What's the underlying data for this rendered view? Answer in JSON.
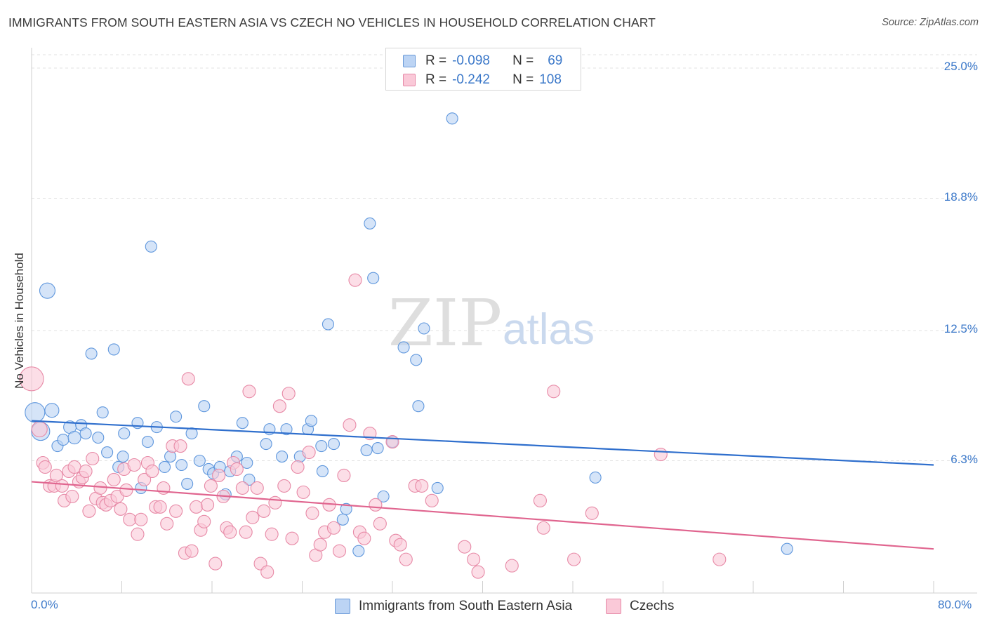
{
  "title": "IMMIGRANTS FROM SOUTH EASTERN ASIA VS CZECH NO VEHICLES IN HOUSEHOLD CORRELATION CHART",
  "source": "Source: ZipAtlas.com",
  "watermark": {
    "zip": "ZIP",
    "atlas": "atlas"
  },
  "legend": {
    "rows": [
      {
        "r_label": "R =",
        "r_value": "-0.098",
        "n_label": "N =",
        "n_value": "69",
        "color": "#bcd4f4",
        "border": "#6a9ad8"
      },
      {
        "r_label": "R =",
        "r_value": "-0.242",
        "n_label": "N =",
        "n_value": "108",
        "color": "#fac9d8",
        "border": "#e68aa8"
      }
    ]
  },
  "chart_data": {
    "type": "scatter",
    "title": "IMMIGRANTS FROM SOUTH EASTERN ASIA VS CZECH NO VEHICLES IN HOUSEHOLD CORRELATION CHART",
    "xlabel": "",
    "ylabel": "No Vehicles in Household",
    "xlim": [
      0,
      80
    ],
    "ylim": [
      0,
      25
    ],
    "x_tick_labels": [
      "0.0%",
      "80.0%"
    ],
    "y_ticks": [
      {
        "value": 25.0,
        "label": "25.0%"
      },
      {
        "value": 18.8,
        "label": "18.8%"
      },
      {
        "value": 12.5,
        "label": "12.5%"
      },
      {
        "value": 6.3,
        "label": "6.3%"
      }
    ],
    "grid": true,
    "series": [
      {
        "name": "Immigrants from South Eastern Asia",
        "color": "#5f97dd",
        "fill": "#bcd4f4",
        "trend": {
          "x": [
            0,
            80
          ],
          "y": [
            8.2,
            6.1
          ]
        },
        "points": [
          [
            0.3,
            8.6,
            14
          ],
          [
            0.8,
            7.7,
            13
          ],
          [
            1.4,
            14.4,
            11
          ],
          [
            1.8,
            8.7,
            10
          ],
          [
            2.3,
            7.0,
            8
          ],
          [
            2.8,
            7.3,
            8
          ],
          [
            3.4,
            7.9,
            9
          ],
          [
            3.8,
            7.4,
            9
          ],
          [
            4.4,
            8.0,
            8
          ],
          [
            4.8,
            7.6,
            8
          ],
          [
            5.3,
            11.4,
            8
          ],
          [
            5.9,
            7.4,
            8
          ],
          [
            6.3,
            8.6,
            8
          ],
          [
            6.7,
            6.7,
            8
          ],
          [
            7.3,
            11.6,
            8
          ],
          [
            7.7,
            6.0,
            8
          ],
          [
            8.1,
            6.5,
            8
          ],
          [
            8.2,
            7.6,
            8
          ],
          [
            9.4,
            8.1,
            8
          ],
          [
            9.7,
            5.0,
            8
          ],
          [
            10.3,
            7.2,
            8
          ],
          [
            10.6,
            16.5,
            8
          ],
          [
            11.1,
            7.9,
            8
          ],
          [
            11.8,
            6.0,
            8
          ],
          [
            12.3,
            6.5,
            8
          ],
          [
            12.8,
            8.4,
            8
          ],
          [
            13.3,
            6.1,
            8
          ],
          [
            13.8,
            5.2,
            8
          ],
          [
            14.2,
            7.6,
            8
          ],
          [
            14.9,
            6.3,
            8
          ],
          [
            15.3,
            8.9,
            8
          ],
          [
            15.7,
            5.9,
            8
          ],
          [
            16.1,
            5.7,
            8
          ],
          [
            16.7,
            6.0,
            8
          ],
          [
            17.2,
            4.7,
            8
          ],
          [
            17.6,
            5.8,
            8
          ],
          [
            18.2,
            6.5,
            8
          ],
          [
            18.7,
            8.1,
            8
          ],
          [
            19.1,
            6.2,
            8
          ],
          [
            19.3,
            5.4,
            8
          ],
          [
            20.8,
            7.1,
            8
          ],
          [
            21.1,
            7.8,
            8
          ],
          [
            22.2,
            6.5,
            8
          ],
          [
            22.6,
            7.8,
            8
          ],
          [
            23.8,
            6.5,
            8
          ],
          [
            24.5,
            7.8,
            8
          ],
          [
            24.8,
            8.2,
            8
          ],
          [
            25.7,
            7.0,
            8
          ],
          [
            25.8,
            5.8,
            8
          ],
          [
            26.3,
            12.8,
            8
          ],
          [
            26.8,
            7.1,
            8
          ],
          [
            27.6,
            3.5,
            8
          ],
          [
            27.9,
            4.0,
            8
          ],
          [
            29.0,
            2.0,
            8
          ],
          [
            29.7,
            6.8,
            8
          ],
          [
            30.0,
            17.6,
            8
          ],
          [
            30.3,
            15.0,
            8
          ],
          [
            30.7,
            6.9,
            8
          ],
          [
            31.2,
            4.6,
            8
          ],
          [
            32.0,
            7.2,
            8
          ],
          [
            33.0,
            11.7,
            8
          ],
          [
            34.1,
            11.1,
            8
          ],
          [
            34.3,
            8.9,
            8
          ],
          [
            34.8,
            12.6,
            8
          ],
          [
            36.0,
            5.0,
            8
          ],
          [
            37.3,
            22.6,
            8
          ],
          [
            50.0,
            5.5,
            8
          ],
          [
            67.0,
            2.1,
            8
          ]
        ]
      },
      {
        "name": "Czechs",
        "color": "#e789a6",
        "fill": "#fac9d8",
        "trend": {
          "x": [
            0,
            80
          ],
          "y": [
            5.3,
            2.1
          ]
        },
        "points": [
          [
            0.0,
            10.2,
            17
          ],
          [
            0.7,
            7.8,
            11
          ],
          [
            1.0,
            6.2,
            9
          ],
          [
            1.2,
            6.0,
            9
          ],
          [
            1.6,
            5.1,
            9
          ],
          [
            2.0,
            5.1,
            9
          ],
          [
            2.2,
            5.6,
            9
          ],
          [
            2.7,
            5.1,
            9
          ],
          [
            2.9,
            4.4,
            9
          ],
          [
            3.3,
            5.8,
            9
          ],
          [
            3.6,
            4.6,
            9
          ],
          [
            3.8,
            6.0,
            9
          ],
          [
            4.2,
            5.3,
            9
          ],
          [
            4.5,
            5.5,
            9
          ],
          [
            4.8,
            5.8,
            9
          ],
          [
            5.1,
            3.9,
            9
          ],
          [
            5.4,
            6.4,
            9
          ],
          [
            5.7,
            4.5,
            9
          ],
          [
            6.1,
            5.0,
            9
          ],
          [
            6.3,
            4.3,
            9
          ],
          [
            6.6,
            4.2,
            9
          ],
          [
            7.0,
            4.4,
            9
          ],
          [
            7.3,
            5.4,
            9
          ],
          [
            7.6,
            4.6,
            9
          ],
          [
            7.9,
            4.0,
            9
          ],
          [
            8.2,
            5.9,
            9
          ],
          [
            8.4,
            4.9,
            9
          ],
          [
            8.7,
            3.5,
            9
          ],
          [
            9.1,
            6.1,
            9
          ],
          [
            9.4,
            2.8,
            9
          ],
          [
            9.7,
            3.5,
            9
          ],
          [
            10.0,
            5.4,
            9
          ],
          [
            10.3,
            6.2,
            9
          ],
          [
            10.7,
            5.8,
            9
          ],
          [
            11.0,
            4.1,
            9
          ],
          [
            11.4,
            4.1,
            9
          ],
          [
            11.7,
            5.0,
            9
          ],
          [
            12.0,
            3.3,
            9
          ],
          [
            12.5,
            7.0,
            9
          ],
          [
            12.8,
            3.9,
            9
          ],
          [
            13.2,
            7.0,
            9
          ],
          [
            13.6,
            1.9,
            9
          ],
          [
            13.9,
            10.2,
            9
          ],
          [
            14.2,
            2.0,
            9
          ],
          [
            14.6,
            4.1,
            9
          ],
          [
            15.0,
            3.0,
            9
          ],
          [
            15.3,
            3.4,
            9
          ],
          [
            15.6,
            4.2,
            9
          ],
          [
            15.9,
            5.1,
            9
          ],
          [
            16.3,
            1.4,
            9
          ],
          [
            16.6,
            5.6,
            9
          ],
          [
            17.0,
            4.6,
            9
          ],
          [
            17.3,
            3.1,
            9
          ],
          [
            17.6,
            2.9,
            9
          ],
          [
            17.9,
            6.2,
            9
          ],
          [
            18.2,
            5.9,
            9
          ],
          [
            18.7,
            5.0,
            9
          ],
          [
            19.0,
            2.9,
            9
          ],
          [
            19.3,
            9.6,
            9
          ],
          [
            19.6,
            3.6,
            9
          ],
          [
            20.0,
            5.0,
            9
          ],
          [
            20.3,
            1.4,
            9
          ],
          [
            20.6,
            3.9,
            9
          ],
          [
            20.9,
            1.0,
            9
          ],
          [
            21.3,
            2.8,
            9
          ],
          [
            21.6,
            4.3,
            9
          ],
          [
            22.0,
            8.9,
            9
          ],
          [
            22.4,
            5.1,
            9
          ],
          [
            22.8,
            9.5,
            9
          ],
          [
            23.1,
            2.6,
            9
          ],
          [
            23.6,
            6.0,
            9
          ],
          [
            24.1,
            4.8,
            9
          ],
          [
            24.6,
            6.7,
            9
          ],
          [
            24.9,
            3.8,
            9
          ],
          [
            25.2,
            1.8,
            9
          ],
          [
            25.6,
            2.3,
            9
          ],
          [
            26.0,
            2.9,
            9
          ],
          [
            26.4,
            4.2,
            9
          ],
          [
            26.8,
            3.1,
            9
          ],
          [
            27.3,
            2.0,
            9
          ],
          [
            27.7,
            5.6,
            9
          ],
          [
            28.2,
            8.0,
            9
          ],
          [
            28.7,
            14.9,
            9
          ],
          [
            29.1,
            2.9,
            9
          ],
          [
            29.5,
            2.6,
            9
          ],
          [
            30.0,
            7.6,
            9
          ],
          [
            30.5,
            4.2,
            9
          ],
          [
            30.9,
            3.3,
            9
          ],
          [
            32.0,
            7.2,
            9
          ],
          [
            32.3,
            2.5,
            9
          ],
          [
            32.7,
            2.3,
            9
          ],
          [
            33.2,
            1.6,
            9
          ],
          [
            34.0,
            5.1,
            9
          ],
          [
            34.6,
            5.1,
            9
          ],
          [
            35.5,
            4.4,
            9
          ],
          [
            38.4,
            2.2,
            9
          ],
          [
            39.2,
            1.6,
            9
          ],
          [
            39.6,
            1.0,
            9
          ],
          [
            42.6,
            1.3,
            9
          ],
          [
            45.1,
            4.4,
            9
          ],
          [
            45.4,
            3.1,
            9
          ],
          [
            46.3,
            9.6,
            9
          ],
          [
            48.1,
            1.6,
            9
          ],
          [
            49.7,
            3.8,
            9
          ],
          [
            55.8,
            6.6,
            9
          ],
          [
            61.0,
            1.6,
            9
          ]
        ]
      }
    ]
  },
  "bottom_legend": [
    {
      "label": "Immigrants from South Eastern Asia",
      "color": "#bcd4f4",
      "border": "#6a9ad8"
    },
    {
      "label": "Czechs",
      "color": "#fac9d8",
      "border": "#e68aa8"
    }
  ]
}
